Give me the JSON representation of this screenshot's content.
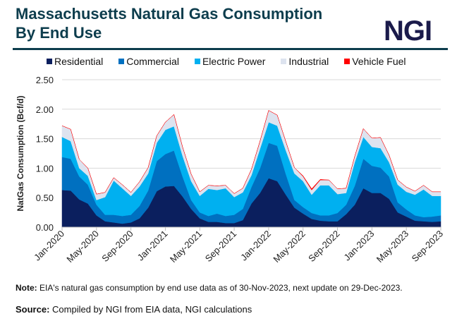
{
  "title_line1": "Massachusetts Natural Gas Consumption",
  "title_line2": "By End Use",
  "logo": "NGI",
  "note_label": "Note:",
  "note_text": " EIA's natural gas consumption by end use data as of 30-Nov-2023, next update on 29-Dec-2023.",
  "source_label": "Source:",
  "source_text": " Compiled by NGI from EIA data, NGI calculations",
  "chart_data": {
    "type": "area",
    "stacked": true,
    "title": "Massachusetts Natural Gas Consumption By End Use",
    "ylabel": "NatGas Consumption (Bcf/d)",
    "xlabel": "",
    "ylim": [
      0,
      2.5
    ],
    "yticks": [
      "0.00",
      "0.50",
      "1.00",
      "1.50",
      "2.00",
      "2.50"
    ],
    "xtick_labels": [
      "Jan-2020",
      "May-2020",
      "Sep-2020",
      "Jan-2021",
      "May-2021",
      "Sep-2021",
      "Jan-2022",
      "May-2022",
      "Sep-2022",
      "Jan-2023",
      "May-2023",
      "Sep-2023"
    ],
    "xtick_every": 4,
    "grid": true,
    "legend_position": "top",
    "months": 45,
    "series": [
      {
        "name": "Residential",
        "color": "#0b1f5e",
        "values": [
          0.63,
          0.62,
          0.47,
          0.4,
          0.2,
          0.1,
          0.08,
          0.06,
          0.08,
          0.15,
          0.33,
          0.61,
          0.69,
          0.7,
          0.52,
          0.31,
          0.15,
          0.09,
          0.09,
          0.07,
          0.07,
          0.12,
          0.4,
          0.58,
          0.83,
          0.78,
          0.55,
          0.33,
          0.23,
          0.14,
          0.11,
          0.1,
          0.1,
          0.22,
          0.38,
          0.66,
          0.58,
          0.58,
          0.48,
          0.25,
          0.18,
          0.11,
          0.1,
          0.09,
          0.1
        ]
      },
      {
        "name": "Commercial",
        "color": "#0070c0",
        "values": [
          0.56,
          0.54,
          0.39,
          0.32,
          0.18,
          0.11,
          0.13,
          0.13,
          0.13,
          0.21,
          0.29,
          0.51,
          0.55,
          0.6,
          0.34,
          0.15,
          0.1,
          0.1,
          0.14,
          0.12,
          0.14,
          0.19,
          0.28,
          0.42,
          0.6,
          0.6,
          0.35,
          0.13,
          0.11,
          0.1,
          0.09,
          0.1,
          0.14,
          0.16,
          0.32,
          0.5,
          0.46,
          0.43,
          0.38,
          0.17,
          0.12,
          0.09,
          0.07,
          0.09,
          0.1
        ]
      },
      {
        "name": "Electric Power",
        "color": "#00b0f0",
        "values": [
          0.34,
          0.3,
          0.14,
          0.15,
          0.08,
          0.3,
          0.58,
          0.47,
          0.32,
          0.33,
          0.29,
          0.31,
          0.41,
          0.41,
          0.35,
          0.32,
          0.28,
          0.46,
          0.4,
          0.47,
          0.3,
          0.28,
          0.2,
          0.33,
          0.35,
          0.34,
          0.4,
          0.45,
          0.44,
          0.31,
          0.51,
          0.51,
          0.32,
          0.2,
          0.4,
          0.37,
          0.32,
          0.33,
          0.24,
          0.3,
          0.3,
          0.35,
          0.47,
          0.35,
          0.33
        ]
      },
      {
        "name": "Industrial",
        "color": "#dde3ef",
        "values": [
          0.19,
          0.2,
          0.15,
          0.13,
          0.1,
          0.08,
          0.05,
          0.06,
          0.06,
          0.08,
          0.1,
          0.12,
          0.13,
          0.2,
          0.15,
          0.12,
          0.07,
          0.06,
          0.07,
          0.05,
          0.06,
          0.07,
          0.1,
          0.13,
          0.2,
          0.18,
          0.15,
          0.1,
          0.08,
          0.08,
          0.09,
          0.09,
          0.09,
          0.08,
          0.1,
          0.14,
          0.15,
          0.18,
          0.12,
          0.08,
          0.08,
          0.06,
          0.07,
          0.07,
          0.07
        ]
      },
      {
        "name": "Vehicle Fuel",
        "color": "#ff0000",
        "values": [
          0,
          0,
          0,
          0,
          0,
          0,
          0,
          0,
          0,
          0,
          0,
          0,
          0,
          0,
          0,
          0,
          0,
          0,
          0,
          0,
          0,
          0,
          0,
          0,
          0,
          0,
          0,
          0,
          0.01,
          0.02,
          0.01,
          0,
          0,
          0,
          0,
          0,
          0,
          0,
          0,
          0,
          0,
          0,
          0,
          0,
          0
        ]
      }
    ]
  }
}
